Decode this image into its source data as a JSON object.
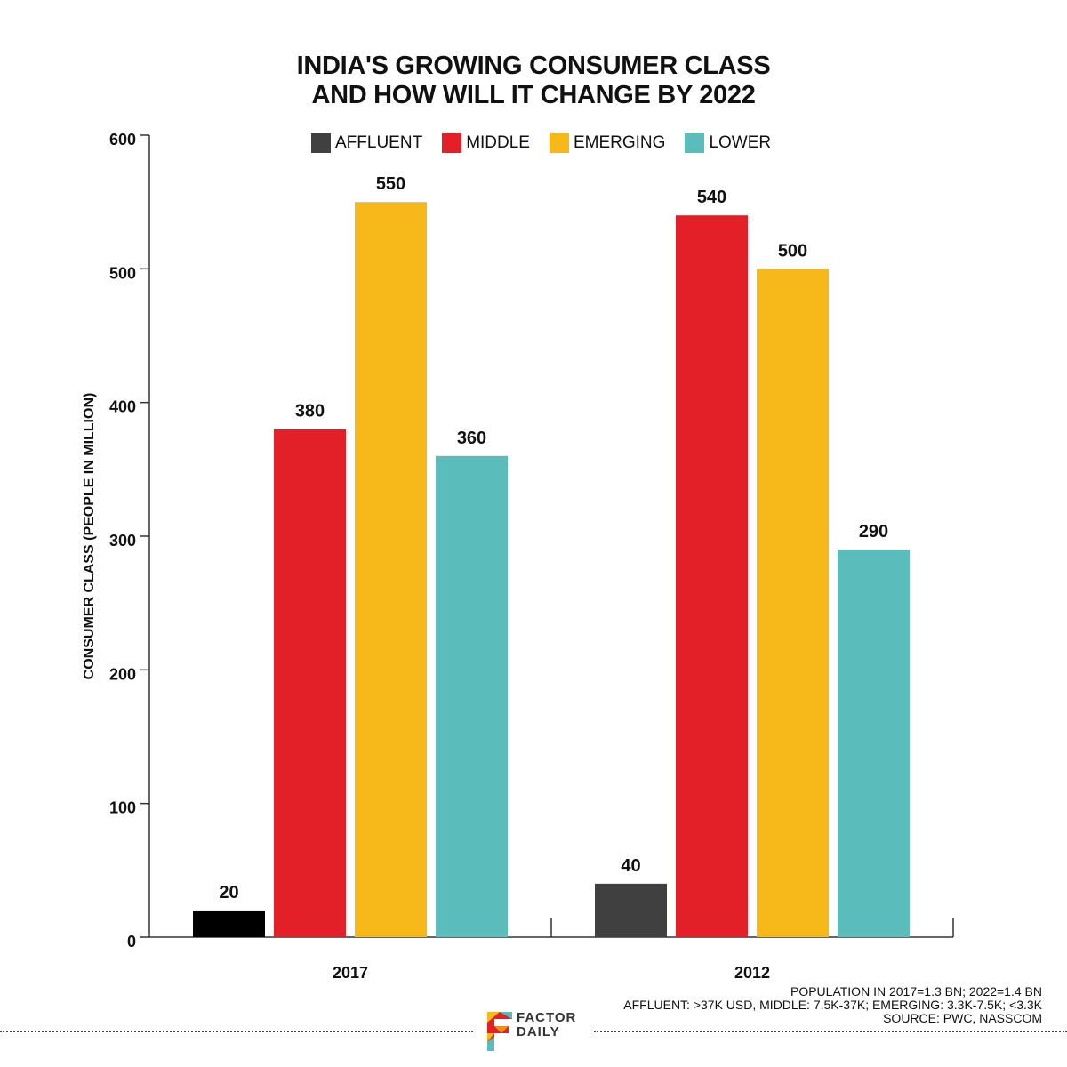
{
  "title": {
    "line1": "INDIA'S GROWING CONSUMER CLASS",
    "line2": "AND HOW WILL IT CHANGE BY 2022"
  },
  "legend": [
    {
      "label": "AFFLUENT",
      "color": "#404040"
    },
    {
      "label": "MIDDLE",
      "color": "#e32028"
    },
    {
      "label": "EMERGING",
      "color": "#f7b81a"
    },
    {
      "label": "LOWER",
      "color": "#5bbcbc"
    }
  ],
  "chart_data": {
    "type": "bar",
    "title": "INDIA'S GROWING CONSUMER CLASS AND HOW WILL IT CHANGE BY 2022",
    "ylabel": "CONSUMER CLASS (PEOPLE IN MILLION)",
    "xlabel": "",
    "ylim": [
      0,
      600
    ],
    "yticks": [
      0,
      100,
      200,
      300,
      400,
      500,
      600
    ],
    "categories": [
      "2017",
      "2012"
    ],
    "series": [
      {
        "name": "AFFLUENT",
        "values": [
          20,
          40
        ],
        "colors": [
          "#000000",
          "#404040"
        ]
      },
      {
        "name": "MIDDLE",
        "values": [
          380,
          540
        ],
        "colors": [
          "#e32028",
          "#e32028"
        ]
      },
      {
        "name": "EMERGING",
        "values": [
          550,
          500
        ],
        "colors": [
          "#f7b81a",
          "#f7b81a"
        ]
      },
      {
        "name": "LOWER",
        "values": [
          360,
          290
        ],
        "colors": [
          "#5bbcbc",
          "#5bbcbc"
        ]
      }
    ]
  },
  "footnote": {
    "line1": "POPULATION IN 2017=1.3 BN; 2022=1.4 BN",
    "line2": "AFFLUENT: >37K USD, MIDDLE: 7.5K-37K; EMERGING: 3.3K-7.5K; <3.3K",
    "line3": "SOURCE: PWC, NASSCOM"
  },
  "logo": {
    "line1": "FACTOR",
    "line2": "DAILY"
  }
}
